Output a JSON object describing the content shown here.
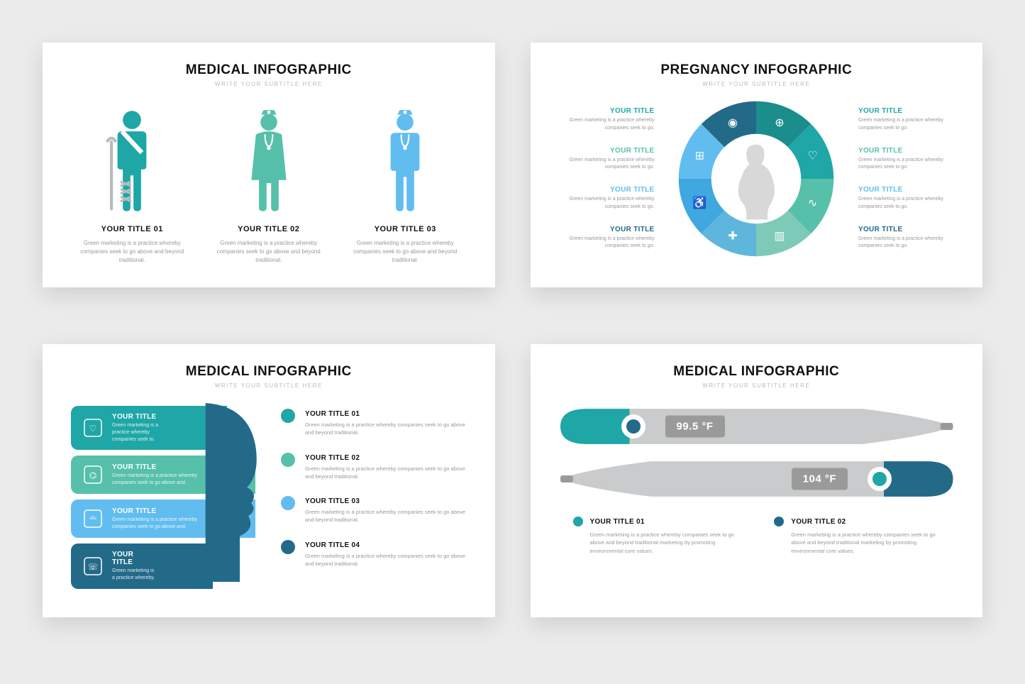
{
  "colors": {
    "teal": "#1fa6a6",
    "teal_dark": "#1b8d8d",
    "mint": "#56c0aa",
    "blue_light": "#61bdf0",
    "blue": "#3fa8e0",
    "navy": "#236a89",
    "gray_body": "#c9cbcc",
    "gray_dark": "#9a9a9a"
  },
  "subtitle": "WRITE YOUR SUBTITLE HERE",
  "slide1": {
    "title": "MEDICAL INFOGRAPHIC",
    "items": [
      {
        "title": "YOUR TITLE 01",
        "desc": "Green marketing is a practice whereby companies seek to go above and beyond traditional.",
        "color": "#1fa6a6"
      },
      {
        "title": "YOUR TITLE 02",
        "desc": "Green marketing is a practice whereby companies seek to go above and beyond traditional.",
        "color": "#56c0aa"
      },
      {
        "title": "YOUR TITLE 03",
        "desc": "Green marketing is a practice whereby companies seek to go above and beyond traditional.",
        "color": "#61bdf0"
      }
    ]
  },
  "slide2": {
    "title": "PREGNANCY INFOGRAPHIC",
    "left": [
      {
        "title": "YOUR TITLE",
        "desc": "Green marketing is a practice whereby companies seek to go.",
        "color": "#1fa6a6"
      },
      {
        "title": "YOUR TITLE",
        "desc": "Green marketing is a practice whereby companies seek to go.",
        "color": "#56c0aa"
      },
      {
        "title": "YOUR TITLE",
        "desc": "Green marketing is a practice whereby companies seek to go.",
        "color": "#61bdf0"
      },
      {
        "title": "YOUR TITLE",
        "desc": "Green marketing is a practice whereby companies seek to go.",
        "color": "#236a89"
      }
    ],
    "right": [
      {
        "title": "YOUR TITLE",
        "desc": "Green marketing is a practice whereby companies seek to go.",
        "color": "#1fa6a6"
      },
      {
        "title": "YOUR TITLE",
        "desc": "Green marketing is a practice whereby companies seek to go.",
        "color": "#56c0aa"
      },
      {
        "title": "YOUR TITLE",
        "desc": "Green marketing is a practice whereby companies seek to go.",
        "color": "#61bdf0"
      },
      {
        "title": "YOUR TITLE",
        "desc": "Green marketing is a practice whereby companies seek to go.",
        "color": "#236a89"
      }
    ],
    "segments": [
      "#1b8d8d",
      "#1fa6a6",
      "#56c0aa",
      "#7dcab9",
      "#5fb6dc",
      "#3fa8e0",
      "#61bdf0",
      "#236a89"
    ]
  },
  "slide3": {
    "title": "MEDICAL INFOGRAPHIC",
    "bands": [
      {
        "title": "YOUR TITLE",
        "desc": "Green marketing is a practice whereby companies seek to.",
        "color": "#1fa6a6"
      },
      {
        "title": "YOUR TITLE",
        "desc": "Green marketing is a practice whereby companies seek to go above and.",
        "color": "#56c0aa"
      },
      {
        "title": "YOUR TITLE",
        "desc": "Green marketing is a practice whereby companies seek to go above and.",
        "color": "#61bdf0"
      },
      {
        "title": "YOUR TITLE",
        "desc": "Green marketing is a practice whereby.",
        "color": "#236a89"
      }
    ],
    "bullets": [
      {
        "title": "YOUR TITLE 01",
        "desc": "Green marketing is a practice whereby companies seek to go above and beyond traditional.",
        "color": "#1fa6a6"
      },
      {
        "title": "YOUR TITLE 02",
        "desc": "Green marketing is a practice whereby companies seek to go above and beyond traditional.",
        "color": "#56c0aa"
      },
      {
        "title": "YOUR TITLE 03",
        "desc": "Green marketing is a practice whereby companies seek to go above and beyond traditional.",
        "color": "#61bdf0"
      },
      {
        "title": "YOUR TITLE 04",
        "desc": "Green marketing is a practice whereby companies seek to go above and beyond traditional.",
        "color": "#236a89"
      }
    ]
  },
  "slide4": {
    "title": "MEDICAL INFOGRAPHIC",
    "thermometers": [
      {
        "value": "99.5 °F",
        "accent": "#1fa6a6",
        "knob": "#236a89"
      },
      {
        "value": "104 °F",
        "accent": "#236a89",
        "knob": "#1fa6a6"
      }
    ],
    "bullets": [
      {
        "title": "YOUR TITLE 01",
        "desc": "Green marketing is a practice whereby companies seek to go above and beyond traditional marketing by promoting environmental core values.",
        "color": "#1fa6a6"
      },
      {
        "title": "YOUR TITLE 02",
        "desc": "Green marketing is a practice whereby companies seek to go above and beyond traditional marketing by promoting environmental core values.",
        "color": "#236a89"
      }
    ]
  }
}
